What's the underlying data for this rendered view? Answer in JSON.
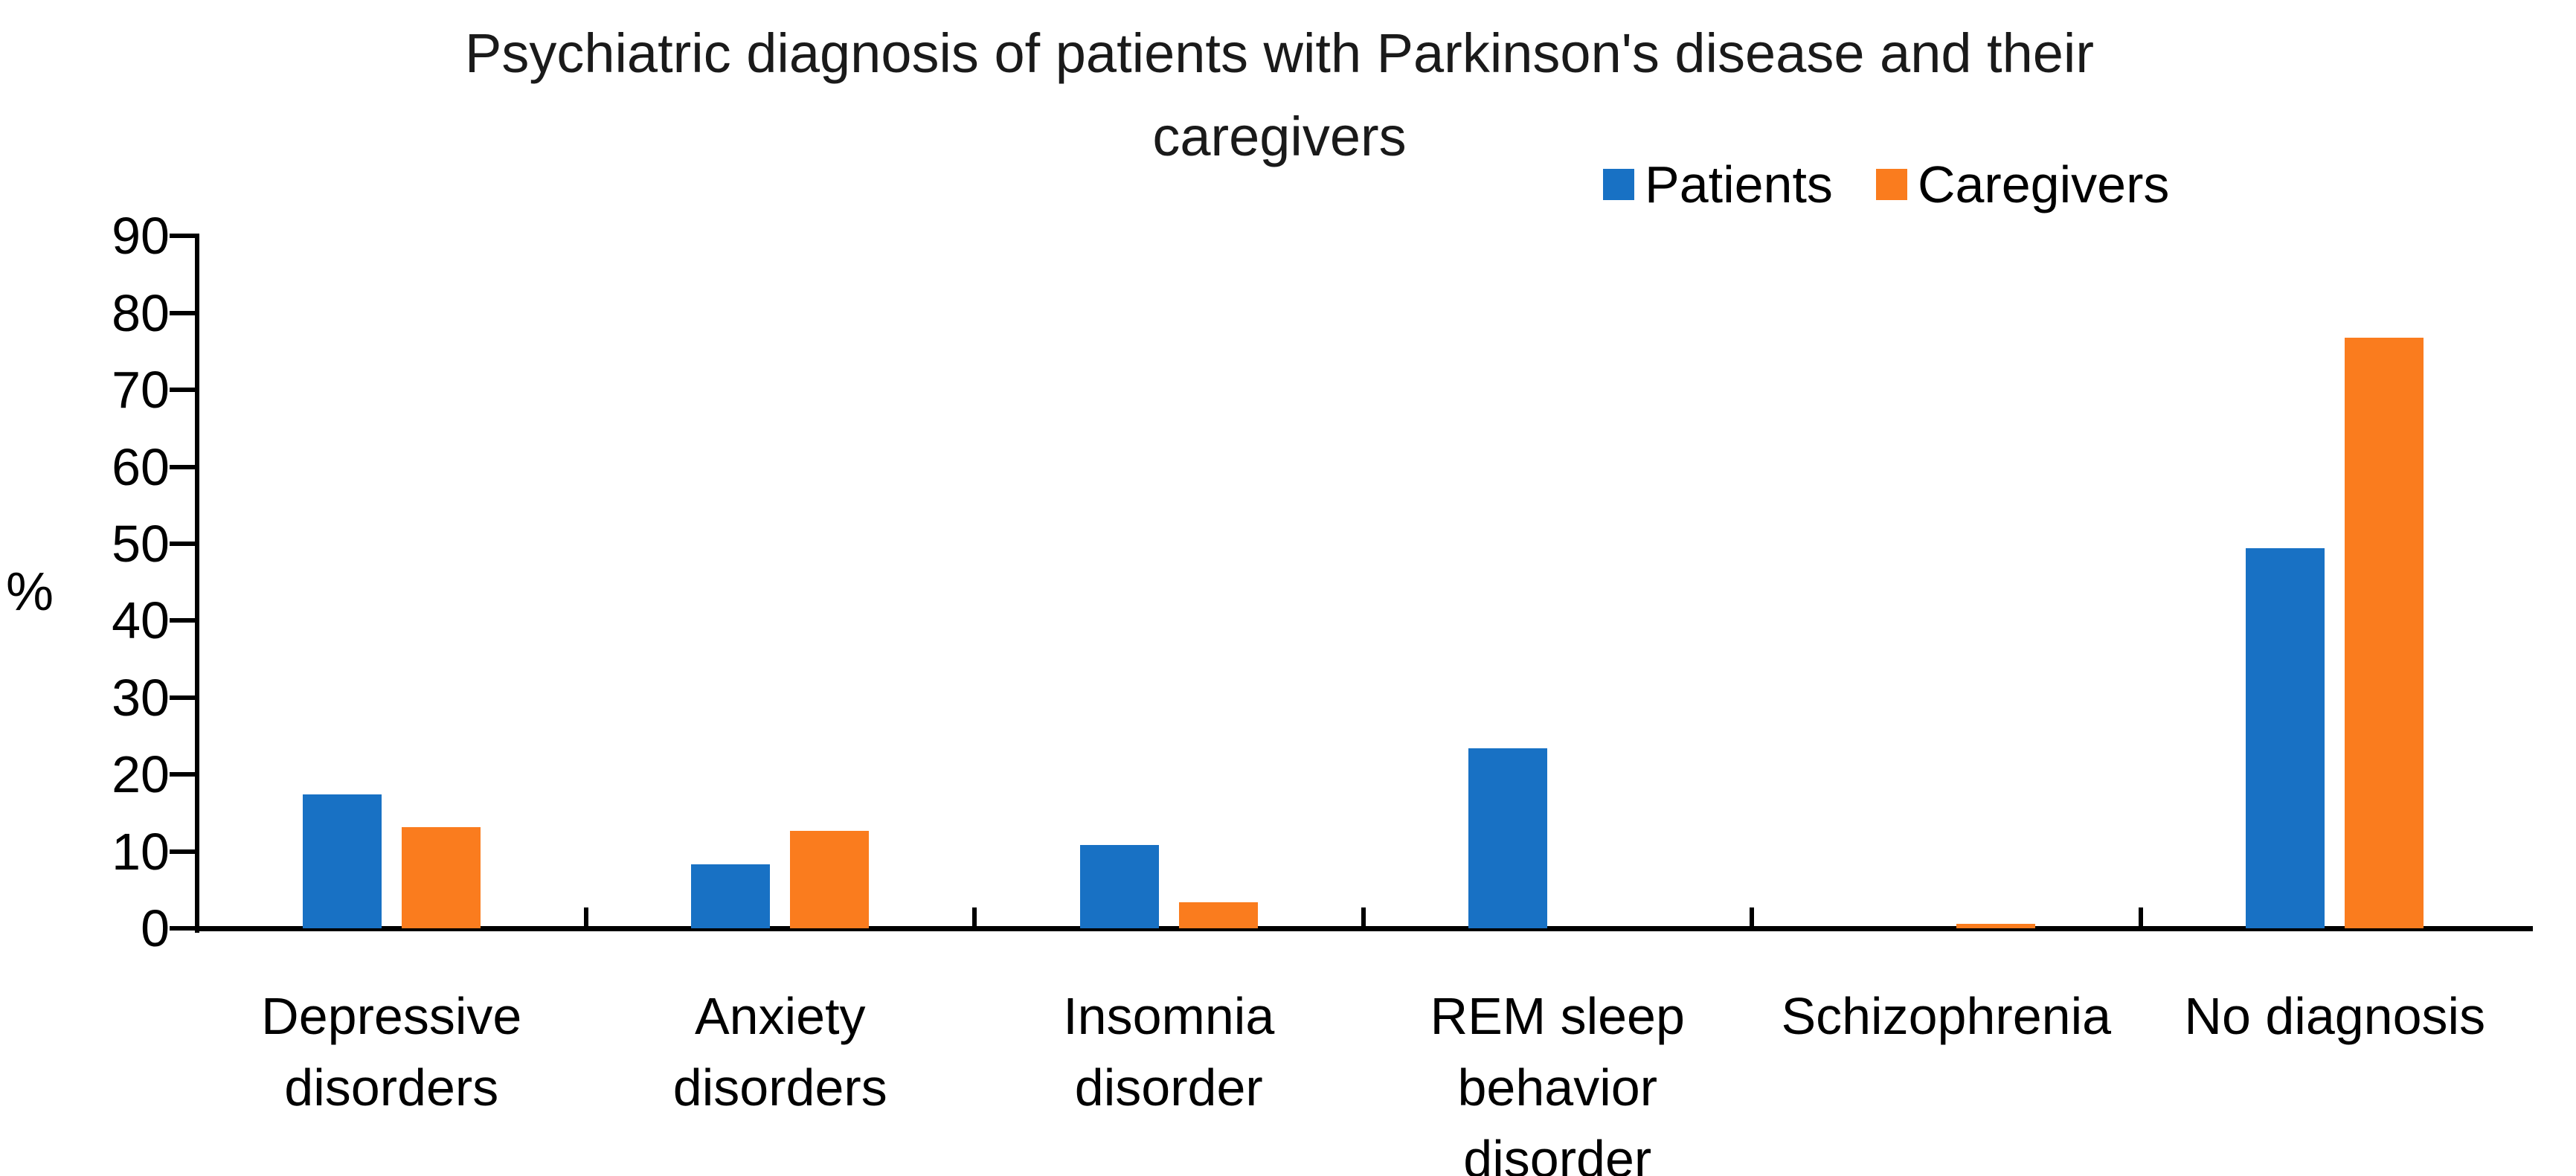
{
  "page": {
    "background": "#FFFFFF"
  },
  "title": {
    "line1": "Psychiatric diagnosis of patients with Parkinson's disease and their",
    "line2": "caregivers"
  },
  "legend": {
    "items": [
      {
        "label": "Patients",
        "color": "#1871C4"
      },
      {
        "label": "Caregivers",
        "color": "#FA7C1E"
      }
    ]
  },
  "y_axis": {
    "label": "%",
    "ticks": [
      0,
      10,
      20,
      30,
      40,
      50,
      60,
      70,
      80,
      90
    ],
    "max": 90
  },
  "chart_data": {
    "type": "bar",
    "title": "Psychiatric diagnosis of patients with Parkinson's disease and their caregivers",
    "categories": [
      "Depressive disorders",
      "Anxiety disorders",
      "Insomnia disorder",
      "REM sleep behavior disorder",
      "Schizophrenia",
      "No diagnosis"
    ],
    "category_label_lines": [
      [
        "Depressive",
        "disorders"
      ],
      [
        "Anxiety",
        "disorders"
      ],
      [
        "Insomnia",
        "disorder"
      ],
      [
        "REM sleep",
        "behavior",
        "disorder"
      ],
      [
        "Schizophrenia"
      ],
      [
        "No diagnosis"
      ]
    ],
    "series": [
      {
        "name": "Patients",
        "color": "#1871C4",
        "values": [
          17.4,
          8.3,
          10.8,
          23.4,
          0,
          49.4
        ]
      },
      {
        "name": "Caregivers",
        "color": "#FA7C1E",
        "values": [
          13.2,
          12.7,
          3.4,
          0,
          0.6,
          76.8
        ]
      }
    ],
    "xlabel": "",
    "ylabel": "%",
    "ylim": [
      0,
      90
    ],
    "ytick_step": 10,
    "grid": false,
    "legend_position": "top-right"
  }
}
